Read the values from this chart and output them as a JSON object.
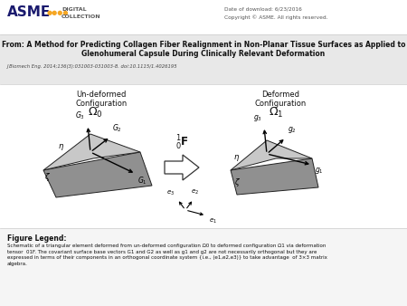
{
  "white_bg": "#ffffff",
  "header_bg": "#e8e8e8",
  "date_text": "Date of download: 6/23/2016",
  "copyright_text": "Copyright © ASME. All rights reserved.",
  "title_line1": "From: A Method for Predicting Collagen Fiber Realignment in Non-Planar Tissue Surfaces as Applied to",
  "title_line2": "Glenohumeral Capsule During Clinically Relevant Deformation",
  "journal_ref": "J Biomech Eng. 2014;136(3):031003-031003-8. doi:10.1115/1.4026195",
  "undeformed_label": "Un-deformed\nConfiguration",
  "deformed_label": "Deformed\nConfiguration",
  "legend_title": "Figure Legend:",
  "legend_text": "Schematic of a triangular element deformed from un-deformed configuration Ω0 to deformed configuration Ω1 via deformation\ntensor  01F. The covariant surface base vectors G1 and G2 as well as g1 and g2 are not necessarily orthogonal but they are\nexpressed in terms of their components in an orthogonal coordinate system {i.e., (e1,e2,e3)} to take advantage  of 3×3 matrix\nalgebra."
}
